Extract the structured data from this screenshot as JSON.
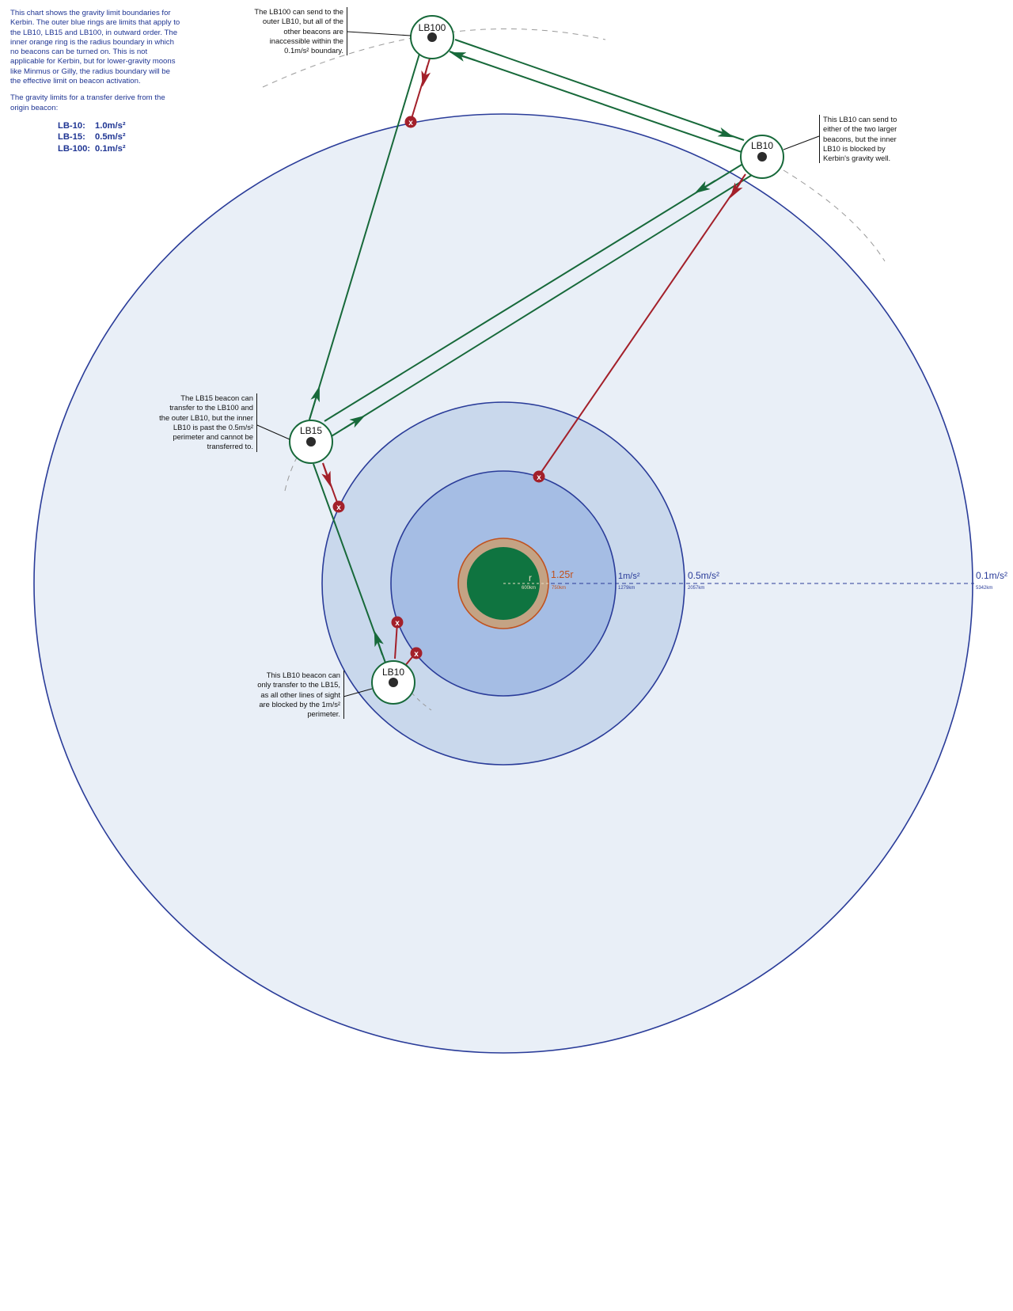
{
  "intro": {
    "paragraph1": "This chart shows the gravity limit boundaries for Kerbin.  The outer blue rings are limits that apply to the LB10, LB15 and LB100, in outward order.  The inner orange ring is the radius boundary in which no beacons can be turned on.  This is not applicable for Kerbin, but for lower-gravity moons like Minmus or Gilly, the radius boundary will be the effective limit on beacon activation.",
    "paragraph2": "The gravity limits for a transfer derive from the origin beacon:",
    "limits": [
      {
        "name": "LB-10:",
        "value": "1.0m/s²"
      },
      {
        "name": "LB-15:",
        "value": "0.5m/s²"
      },
      {
        "name": "LB-100:",
        "value": "0.1m/s²"
      }
    ]
  },
  "notes": {
    "lb100": "The LB100 can send to the outer LB10, but all of the other beacons are inaccessible within the 0.1m/s² boundary.",
    "lb10_outer": "This LB10 can send to either of the two larger beacons, but the inner LB10 is blocked by Kerbin's gravity well.",
    "lb15": "The LB15 beacon can transfer to the LB100 and the outer LB10, but the inner LB10 is past the 0.5m/s² perimeter and cannot be transferred to.",
    "lb10_inner": "This LB10 beacon can only transfer to the LB15, as all other lines of sight are blocked by the 1m/s² perimeter."
  },
  "beacons": {
    "lb100": "LB100",
    "lb10_outer": "LB10",
    "lb15": "LB15",
    "lb10_inner": "LB10"
  },
  "rings": {
    "radius_label": "r",
    "radius_km": "600km",
    "exclusion_label": "1.25r",
    "exclusion_km": "750km",
    "ring1_label": "1m/s²",
    "ring1_km": "1279km",
    "ring2_label": "0.5m/s²",
    "ring2_km": "2057km",
    "ring3_label": "0.1m/s²",
    "ring3_km": "5342km"
  },
  "blocked_marker": "x",
  "colors": {
    "text_blue": "#1f3593",
    "ring_stroke": "#2a3c99",
    "ring_fill_outer": "#e9eff7",
    "ring_fill_mid": "#c9d8ec",
    "ring_fill_inner": "#a5bde4",
    "planet": "#0f7440",
    "exclusion_fill": "#c4a384",
    "exclusion_stroke": "#c0521f",
    "allowed_path": "#17693a",
    "blocked_path": "#a3202a"
  }
}
